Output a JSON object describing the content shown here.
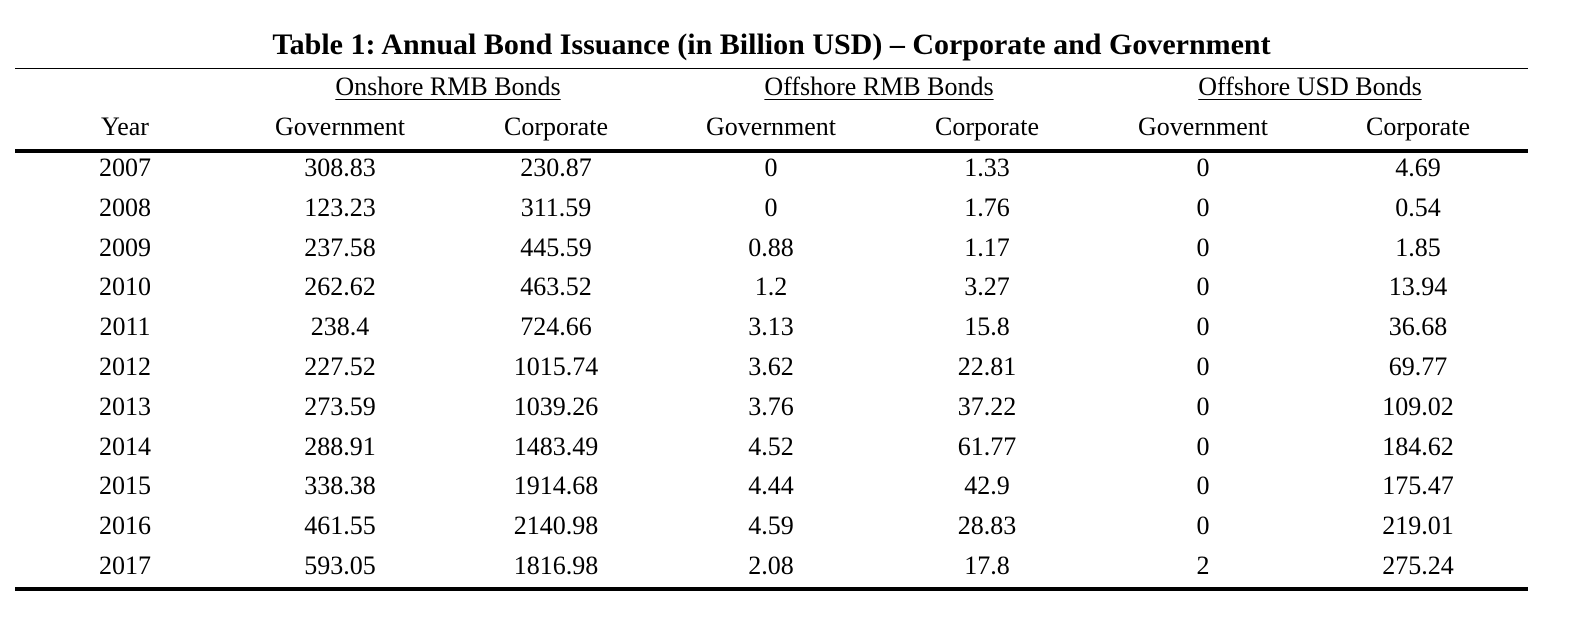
{
  "title": "Table 1: Annual Bond Issuance (in Billion USD) – Corporate and Government",
  "group_headers": [
    "Onshore RMB Bonds",
    "Offshore RMB Bonds",
    "Offshore USD Bonds"
  ],
  "column_headers": [
    "Year",
    "Government",
    "Corporate",
    "Government",
    "Corporate",
    "Government",
    "Corporate"
  ],
  "rows": [
    [
      "2007",
      "308.83",
      "230.87",
      "0",
      "1.33",
      "0",
      "4.69"
    ],
    [
      "2008",
      "123.23",
      "311.59",
      "0",
      "1.76",
      "0",
      "0.54"
    ],
    [
      "2009",
      "237.58",
      "445.59",
      "0.88",
      "1.17",
      "0",
      "1.85"
    ],
    [
      "2010",
      "262.62",
      "463.52",
      "1.2",
      "3.27",
      "0",
      "13.94"
    ],
    [
      "2011",
      "238.4",
      "724.66",
      "3.13",
      "15.8",
      "0",
      "36.68"
    ],
    [
      "2012",
      "227.52",
      "1015.74",
      "3.62",
      "22.81",
      "0",
      "69.77"
    ],
    [
      "2013",
      "273.59",
      "1039.26",
      "3.76",
      "37.22",
      "0",
      "109.02"
    ],
    [
      "2014",
      "288.91",
      "1483.49",
      "4.52",
      "61.77",
      "0",
      "184.62"
    ],
    [
      "2015",
      "338.38",
      "1914.68",
      "4.44",
      "42.9",
      "0",
      "175.47"
    ],
    [
      "2016",
      "461.55",
      "2140.98",
      "4.59",
      "28.83",
      "0",
      "219.01"
    ],
    [
      "2017",
      "593.05",
      "1816.98",
      "2.08",
      "17.8",
      "2",
      "275.24"
    ]
  ]
}
